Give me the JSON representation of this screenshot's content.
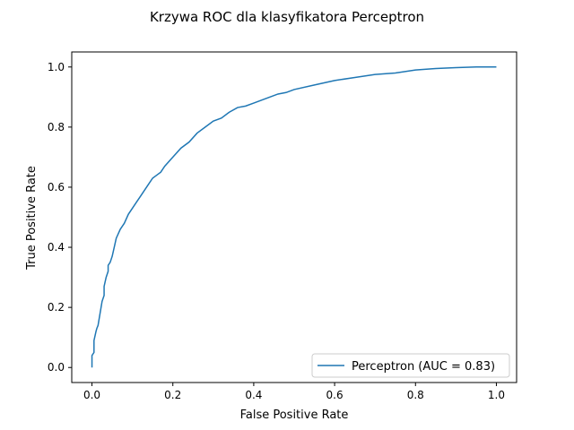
{
  "chart_data": {
    "type": "line",
    "title": "Krzywa ROC dla klasyfikatora Perceptron",
    "xlabel": "False Positive Rate",
    "ylabel": "True Positive Rate",
    "xlim": [
      -0.05,
      1.05
    ],
    "ylim": [
      -0.05,
      1.05
    ],
    "xticks": [
      "0.0",
      "0.2",
      "0.4",
      "0.6",
      "0.8",
      "1.0"
    ],
    "yticks": [
      "0.0",
      "0.2",
      "0.4",
      "0.6",
      "0.8",
      "1.0"
    ],
    "grid": false,
    "legend_position": "lower-right",
    "series": [
      {
        "name": "Perceptron (AUC = 0.83)",
        "color": "#1f77b4",
        "x": [
          0.0,
          0.0,
          0.005,
          0.005,
          0.01,
          0.012,
          0.015,
          0.02,
          0.025,
          0.03,
          0.03,
          0.035,
          0.04,
          0.04,
          0.045,
          0.05,
          0.055,
          0.06,
          0.07,
          0.08,
          0.09,
          0.1,
          0.11,
          0.12,
          0.13,
          0.14,
          0.15,
          0.16,
          0.17,
          0.18,
          0.2,
          0.22,
          0.24,
          0.26,
          0.28,
          0.3,
          0.32,
          0.34,
          0.36,
          0.38,
          0.4,
          0.42,
          0.44,
          0.46,
          0.48,
          0.5,
          0.55,
          0.6,
          0.65,
          0.7,
          0.75,
          0.8,
          0.85,
          0.9,
          0.95,
          1.0
        ],
        "y": [
          0.0,
          0.04,
          0.05,
          0.09,
          0.12,
          0.13,
          0.14,
          0.18,
          0.22,
          0.24,
          0.27,
          0.3,
          0.32,
          0.34,
          0.35,
          0.37,
          0.4,
          0.43,
          0.46,
          0.48,
          0.51,
          0.53,
          0.55,
          0.57,
          0.59,
          0.61,
          0.63,
          0.64,
          0.65,
          0.67,
          0.7,
          0.73,
          0.75,
          0.78,
          0.8,
          0.82,
          0.83,
          0.85,
          0.865,
          0.87,
          0.88,
          0.89,
          0.9,
          0.91,
          0.915,
          0.925,
          0.94,
          0.955,
          0.965,
          0.975,
          0.98,
          0.99,
          0.995,
          0.998,
          1.0,
          1.0
        ]
      }
    ]
  }
}
